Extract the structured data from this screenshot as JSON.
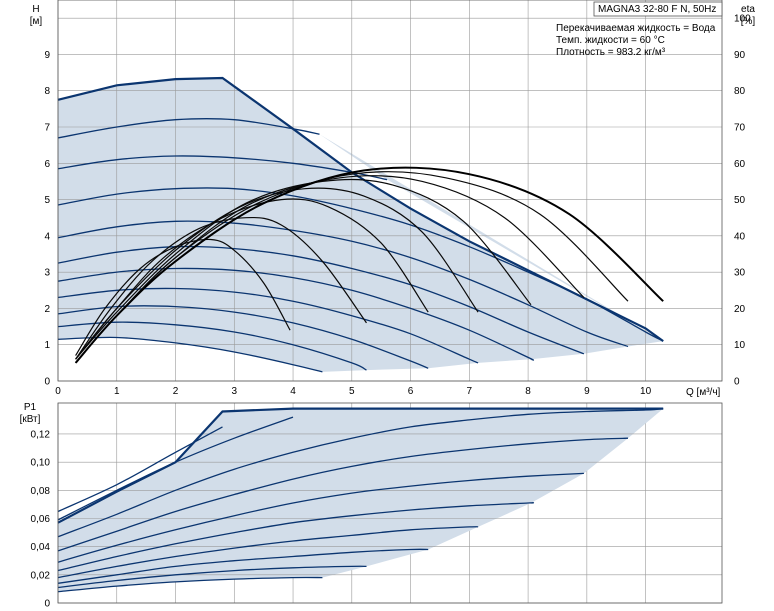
{
  "chart_data": [
    {
      "type": "line",
      "title": "MAGNA3 32-80 F N, 50Hz",
      "annotations": [
        "Перекачиваемая жидкость = Вода",
        "Темп. жидкости = 60 °C",
        "Плотность = 983.2 кг/м³"
      ],
      "xlabel": "Q [м³/ч]",
      "ylabel": "H",
      "ylabel_unit": "[м]",
      "y2label": "eta",
      "y2label_unit": "[%]",
      "xlim": [
        0,
        11.3
      ],
      "ylim": [
        0,
        10.5
      ],
      "y2lim": [
        0,
        105
      ],
      "xticks": [
        "0",
        "1",
        "2",
        "3",
        "4",
        "5",
        "6",
        "7",
        "8",
        "9",
        "10"
      ],
      "yticks": [
        "0",
        "1",
        "2",
        "3",
        "4",
        "5",
        "6",
        "7",
        "8",
        "9"
      ],
      "y2ticks": [
        "0",
        "10",
        "20",
        "30",
        "40",
        "50",
        "60",
        "70",
        "80",
        "90",
        "100"
      ],
      "grid": true,
      "colors": {
        "curves": "#0b3570",
        "area": "#d2dde9",
        "efficiency": "#000000"
      },
      "envelope": {
        "x": [
          0,
          1,
          2,
          2.8,
          3.1,
          4,
          5,
          6,
          7,
          8,
          9,
          10,
          10.3
        ],
        "y": [
          7.75,
          8.15,
          8.32,
          8.35,
          8.0,
          6.95,
          5.75,
          4.75,
          3.85,
          3.05,
          2.25,
          1.45,
          1.1
        ]
      },
      "series": [
        {
          "x": [
            0,
            1,
            2,
            3,
            4,
            4.5
          ],
          "y": [
            1.15,
            1.2,
            1.05,
            0.8,
            0.45,
            0.25
          ]
        },
        {
          "x": [
            0,
            1,
            2,
            3,
            4,
            5,
            5.25
          ],
          "y": [
            1.5,
            1.62,
            1.55,
            1.35,
            1.0,
            0.5,
            0.3
          ]
        },
        {
          "x": [
            0,
            1,
            2,
            3,
            4,
            5,
            6,
            6.3
          ],
          "y": [
            1.85,
            2.05,
            2.05,
            1.9,
            1.6,
            1.15,
            0.55,
            0.35
          ]
        },
        {
          "x": [
            0,
            1,
            2,
            3,
            4,
            5,
            6,
            7,
            7.15
          ],
          "y": [
            2.3,
            2.5,
            2.55,
            2.45,
            2.2,
            1.8,
            1.3,
            0.6,
            0.5
          ]
        },
        {
          "x": [
            0,
            1,
            2,
            3,
            4,
            5,
            6,
            7,
            8,
            8.05
          ],
          "y": [
            2.75,
            3.0,
            3.1,
            3.05,
            2.85,
            2.5,
            2.0,
            1.4,
            0.65,
            0.6
          ]
        },
        {
          "x": [
            0,
            1,
            2,
            3,
            4,
            5,
            6,
            7,
            8,
            8.95
          ],
          "y": [
            3.25,
            3.55,
            3.7,
            3.65,
            3.45,
            3.1,
            2.65,
            2.05,
            1.35,
            0.75
          ]
        },
        {
          "x": [
            0,
            1,
            2,
            3,
            4,
            5,
            6,
            7,
            8,
            9,
            9.7
          ],
          "y": [
            3.95,
            4.25,
            4.4,
            4.35,
            4.15,
            3.85,
            3.4,
            2.8,
            2.1,
            1.35,
            0.95
          ]
        },
        {
          "x": [
            0,
            1,
            2,
            3,
            4,
            5,
            6,
            7,
            8,
            9,
            10,
            10.3
          ],
          "y": [
            4.85,
            5.15,
            5.3,
            5.3,
            5.1,
            4.75,
            4.3,
            3.7,
            3.0,
            2.25,
            1.35,
            1.1
          ]
        },
        {
          "x": [
            0,
            1,
            2,
            3,
            4,
            5,
            5.6
          ],
          "y": [
            5.85,
            6.1,
            6.2,
            6.15,
            6.0,
            5.75,
            5.55
          ]
        },
        {
          "x": [
            0,
            1,
            2,
            3,
            4,
            4.45
          ],
          "y": [
            6.7,
            7.0,
            7.2,
            7.2,
            6.95,
            6.8
          ]
        }
      ],
      "efficiency_curves": [
        {
          "x": [
            0.3,
            0.8,
            1.4,
            2.0,
            2.6,
            3.0,
            3.5,
            3.95
          ],
          "y": [
            7,
            20,
            31,
            37,
            39,
            36,
            27,
            14
          ]
        },
        {
          "x": [
            0.3,
            0.9,
            1.6,
            2.4,
            3.2,
            3.8,
            4.5,
            5.25
          ],
          "y": [
            6,
            20,
            33,
            42,
            45,
            43,
            33,
            16
          ]
        },
        {
          "x": [
            0.3,
            1.0,
            1.8,
            2.8,
            3.8,
            4.6,
            5.5,
            6.3
          ],
          "y": [
            6,
            20,
            34,
            45,
            50,
            48,
            38,
            19
          ]
        },
        {
          "x": [
            0.3,
            1.0,
            2.0,
            3.1,
            4.2,
            5.2,
            6.2,
            7.15
          ],
          "y": [
            6,
            20,
            36,
            48,
            53,
            51,
            41,
            19
          ]
        },
        {
          "x": [
            0.3,
            1.0,
            2.0,
            3.2,
            4.5,
            5.7,
            6.9,
            8.05
          ],
          "y": [
            6,
            19,
            35,
            49,
            55,
            54,
            44,
            21
          ]
        },
        {
          "x": [
            0.3,
            1.0,
            2.0,
            3.3,
            4.8,
            6.2,
            7.6,
            8.95
          ],
          "y": [
            5,
            18,
            34,
            49,
            56,
            55,
            45,
            23
          ]
        },
        {
          "x": [
            0.3,
            1.0,
            2.0,
            3.4,
            5.0,
            6.6,
            8.2,
            9.7
          ],
          "y": [
            5,
            18,
            34,
            49,
            57,
            56,
            46,
            22
          ]
        },
        {
          "x": [
            0.3,
            1.0,
            2.0,
            3.5,
            5.2,
            7.0,
            8.7,
            10.3
          ],
          "y": [
            5,
            18,
            33,
            49,
            58,
            57,
            46,
            22
          ]
        }
      ]
    },
    {
      "type": "line",
      "ylabel": "P1",
      "ylabel_unit": "[кВт]",
      "xlim": [
        0,
        11.3
      ],
      "ylim": [
        0,
        0.142
      ],
      "yticks": [
        "0",
        "0,02",
        "0,04",
        "0,06",
        "0,08",
        "0,10",
        "0,12"
      ],
      "grid": true,
      "envelope": {
        "x": [
          0,
          1,
          2,
          2.8,
          4,
          6,
          8,
          10,
          10.3
        ],
        "y": [
          0.057,
          0.079,
          0.1,
          0.136,
          0.138,
          0.138,
          0.138,
          0.138,
          0.138
        ]
      },
      "series": [
        {
          "x": [
            0,
            1,
            2,
            3,
            4,
            4.5
          ],
          "y": [
            0.008,
            0.012,
            0.015,
            0.017,
            0.018,
            0.018
          ]
        },
        {
          "x": [
            0,
            1,
            2,
            3,
            4,
            5,
            5.25
          ],
          "y": [
            0.011,
            0.016,
            0.02,
            0.023,
            0.025,
            0.026,
            0.026
          ]
        },
        {
          "x": [
            0,
            1,
            2,
            3,
            4,
            5,
            6,
            6.3
          ],
          "y": [
            0.014,
            0.02,
            0.026,
            0.03,
            0.033,
            0.036,
            0.038,
            0.038
          ]
        },
        {
          "x": [
            0,
            1,
            2,
            3,
            4,
            5,
            6,
            7,
            7.15
          ],
          "y": [
            0.018,
            0.026,
            0.033,
            0.039,
            0.044,
            0.048,
            0.052,
            0.054,
            0.054
          ]
        },
        {
          "x": [
            0,
            1,
            2,
            3,
            4,
            5,
            6,
            7,
            8,
            8.05
          ],
          "y": [
            0.023,
            0.033,
            0.042,
            0.05,
            0.057,
            0.062,
            0.066,
            0.069,
            0.071,
            0.071
          ]
        },
        {
          "x": [
            0,
            1,
            2,
            3,
            4,
            5,
            6,
            7,
            8,
            8.95
          ],
          "y": [
            0.029,
            0.041,
            0.052,
            0.062,
            0.071,
            0.078,
            0.083,
            0.087,
            0.09,
            0.092
          ]
        },
        {
          "x": [
            0,
            1,
            2,
            3,
            4,
            5,
            6,
            7,
            8,
            9,
            9.7
          ],
          "y": [
            0.037,
            0.051,
            0.065,
            0.077,
            0.088,
            0.097,
            0.104,
            0.109,
            0.113,
            0.116,
            0.117
          ]
        },
        {
          "x": [
            0,
            1,
            2,
            3,
            4,
            5,
            6,
            7,
            8,
            9,
            10,
            10.3
          ],
          "y": [
            0.047,
            0.063,
            0.08,
            0.095,
            0.107,
            0.117,
            0.125,
            0.13,
            0.134,
            0.136,
            0.137,
            0.138
          ]
        },
        {
          "x": [
            0,
            1,
            2,
            3,
            4
          ],
          "y": [
            0.059,
            0.08,
            0.1,
            0.117,
            0.132
          ]
        },
        {
          "x": [
            0,
            1,
            2,
            2.8
          ],
          "y": [
            0.065,
            0.084,
            0.107,
            0.125
          ]
        }
      ]
    }
  ]
}
